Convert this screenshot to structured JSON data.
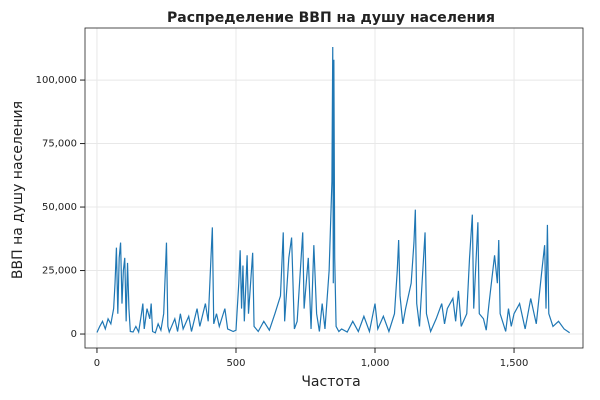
{
  "chart_data": {
    "type": "line",
    "title": "Распределение ВВП на душу населения",
    "x_label": "Частота",
    "y_label": "ВВП на душу населения",
    "color": "#1f77b4",
    "grid": true,
    "xlim": [
      -43,
      1748
    ],
    "ylim": [
      -5500,
      120500
    ],
    "xticks": [
      0,
      500,
      {
        "value": 1000,
        "label": "1,000"
      },
      {
        "value": 1500,
        "label": "1,500"
      }
    ],
    "yticks": [
      0,
      {
        "value": 25000,
        "label": "25,000"
      },
      {
        "value": 50000,
        "label": "50,000"
      },
      {
        "value": 75000,
        "label": "75,000"
      },
      {
        "value": 100000,
        "label": "100,000"
      }
    ],
    "x": [
      0,
      10,
      20,
      30,
      40,
      50,
      60,
      65,
      70,
      75,
      80,
      85,
      90,
      95,
      100,
      105,
      110,
      115,
      120,
      130,
      140,
      150,
      160,
      165,
      170,
      180,
      190,
      195,
      200,
      210,
      220,
      230,
      240,
      250,
      255,
      260,
      280,
      290,
      300,
      310,
      330,
      340,
      360,
      370,
      390,
      400,
      410,
      415,
      420,
      430,
      440,
      460,
      470,
      490,
      500,
      510,
      515,
      520,
      525,
      530,
      540,
      545,
      560,
      565,
      580,
      600,
      620,
      640,
      660,
      670,
      675,
      690,
      700,
      710,
      720,
      740,
      745,
      760,
      770,
      780,
      790,
      800,
      810,
      820,
      835,
      845,
      848,
      850,
      852,
      855,
      860,
      870,
      880,
      900,
      920,
      940,
      960,
      980,
      1000,
      1010,
      1030,
      1050,
      1070,
      1080,
      1085,
      1090,
      1100,
      1110,
      1130,
      1140,
      1145,
      1150,
      1160,
      1180,
      1185,
      1200,
      1220,
      1240,
      1250,
      1260,
      1280,
      1290,
      1300,
      1310,
      1330,
      1340,
      1350,
      1355,
      1370,
      1375,
      1390,
      1400,
      1410,
      1430,
      1440,
      1445,
      1450,
      1470,
      1480,
      1490,
      1500,
      1520,
      1540,
      1560,
      1580,
      1600,
      1610,
      1615,
      1620,
      1625,
      1640,
      1660,
      1680,
      1700
    ],
    "values": [
      600,
      3000,
      5000,
      2000,
      6000,
      4000,
      10000,
      20000,
      34000,
      8000,
      30000,
      36000,
      12000,
      25000,
      30000,
      5000,
      28000,
      10000,
      1000,
      800,
      3000,
      800,
      8000,
      12000,
      2000,
      10000,
      6000,
      12000,
      1000,
      500,
      4000,
      1500,
      8000,
      36000,
      3000,
      800,
      6000,
      1000,
      8000,
      2000,
      7000,
      1000,
      10000,
      3000,
      12000,
      5000,
      30000,
      42000,
      4000,
      8000,
      3000,
      10000,
      2000,
      1000,
      1500,
      20000,
      33000,
      10000,
      27000,
      5000,
      31000,
      8000,
      32000,
      3000,
      1000,
      5000,
      1500,
      8000,
      15000,
      40000,
      5000,
      30000,
      38000,
      2000,
      5000,
      40000,
      10000,
      30000,
      2000,
      35000,
      8000,
      1000,
      12000,
      2000,
      25000,
      60000,
      113000,
      20000,
      108000,
      30000,
      3000,
      1000,
      2000,
      800,
      5000,
      1000,
      7000,
      1000,
      12000,
      2000,
      7000,
      1000,
      8000,
      25000,
      37000,
      15000,
      4000,
      10000,
      20000,
      36000,
      49000,
      12000,
      3000,
      40000,
      8000,
      1000,
      6000,
      12000,
      4000,
      10000,
      14000,
      5000,
      17000,
      3000,
      8000,
      30000,
      47000,
      10000,
      44000,
      8000,
      6000,
      1500,
      12000,
      31000,
      20000,
      37000,
      8000,
      1000,
      10000,
      3000,
      8000,
      12000,
      2000,
      14000,
      4000,
      25000,
      35000,
      10000,
      43000,
      8000,
      3000,
      5000,
      2000,
      500
    ]
  }
}
